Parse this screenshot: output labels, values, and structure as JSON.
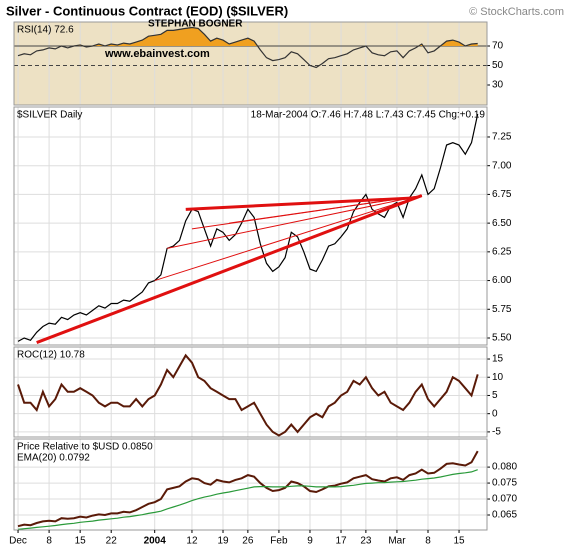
{
  "title": "Silver - Continuous Contract (EOD) ($SILVER)",
  "source": "© StockCharts.com",
  "chart_data": [
    {
      "type": "line",
      "label": "RSI(14) 72.6",
      "background": "#ede1c4",
      "annotations": [
        "STEPHAN BOGNER",
        "www.ebainvest.com"
      ],
      "overbought": 70,
      "overbought_color": "#f0a020",
      "ref_lines": [
        {
          "value": 70,
          "style": "solid"
        },
        {
          "value": 50,
          "style": "dashed"
        }
      ],
      "xlim": [
        -0.65,
        75.5
      ],
      "ylim": [
        9.5,
        94.6
      ],
      "yticks": [
        70,
        50,
        30
      ],
      "grid": true,
      "series": [
        {
          "color": "#333333",
          "values": [
            60,
            62,
            61,
            65,
            66,
            68,
            67,
            70,
            68,
            70,
            71,
            69,
            70,
            72,
            70,
            72,
            71,
            73,
            72,
            74,
            76,
            80,
            81,
            82,
            86,
            86,
            87,
            88,
            89,
            88,
            82,
            75,
            78,
            76,
            72,
            74,
            76,
            78,
            75,
            66,
            58,
            55,
            56,
            58,
            64,
            62,
            56,
            50,
            48,
            52,
            57,
            58,
            60,
            62,
            66,
            68,
            70,
            63,
            61,
            60,
            64,
            65,
            58,
            65,
            68,
            72,
            63,
            65,
            70,
            75,
            76,
            74,
            70,
            72,
            72.6
          ]
        }
      ]
    },
    {
      "type": "line",
      "label": "$SILVER Daily",
      "quote": "18-Mar-2004 O:7.46 H:7.48 L:7.43 C:7.45 Chg:+0.19",
      "background": "#ffffff",
      "xlim": [
        -0.65,
        75.5
      ],
      "ylim": [
        5.439,
        7.511
      ],
      "grid": true,
      "yticks": [
        {
          "value": 5.5,
          "label": "5.50"
        },
        5.75,
        {
          "value": 6,
          "label": "6.00"
        },
        6.25,
        {
          "value": 6.5,
          "label": "6.50"
        },
        6.75,
        {
          "value": 7,
          "label": "7.00"
        },
        7.25
      ],
      "trendline_color": "#e01010",
      "trendlines": [
        {
          "x": [
            3,
            65
          ],
          "y": [
            5.46,
            6.74
          ],
          "width": 3
        },
        {
          "x": [
            27,
            64
          ],
          "y": [
            6.62,
            6.72
          ],
          "width": 3
        },
        {
          "x": [
            22,
            65
          ],
          "y": [
            6.0,
            6.74
          ],
          "width": 1
        },
        {
          "x": [
            24,
            65
          ],
          "y": [
            6.28,
            6.74
          ],
          "width": 1
        },
        {
          "x": [
            28,
            65
          ],
          "y": [
            6.45,
            6.74
          ],
          "width": 1
        },
        {
          "x": [
            34,
            65
          ],
          "y": [
            6.5,
            6.74
          ],
          "width": 1
        }
      ],
      "series": [
        {
          "color": "#000000",
          "values": [
            5.47,
            5.5,
            5.48,
            5.55,
            5.6,
            5.63,
            5.62,
            5.68,
            5.66,
            5.7,
            5.72,
            5.7,
            5.74,
            5.78,
            5.76,
            5.8,
            5.8,
            5.83,
            5.82,
            5.86,
            5.9,
            5.98,
            6.0,
            6.05,
            6.28,
            6.3,
            6.35,
            6.52,
            6.62,
            6.6,
            6.45,
            6.3,
            6.45,
            6.42,
            6.35,
            6.4,
            6.5,
            6.62,
            6.55,
            6.32,
            6.15,
            6.08,
            6.12,
            6.2,
            6.42,
            6.38,
            6.25,
            6.1,
            6.08,
            6.18,
            6.3,
            6.32,
            6.38,
            6.45,
            6.6,
            6.68,
            6.75,
            6.62,
            6.58,
            6.55,
            6.65,
            6.68,
            6.55,
            6.72,
            6.8,
            6.92,
            6.75,
            6.8,
            6.98,
            7.18,
            7.2,
            7.18,
            7.1,
            7.2,
            7.45
          ]
        }
      ]
    },
    {
      "type": "line",
      "label": "ROC(12) 10.78",
      "background": "#ffffff",
      "xlim": [
        -0.65,
        75.5
      ],
      "ylim": [
        -6.4,
        18.3
      ],
      "yticks": [
        15,
        10,
        5,
        0,
        -5
      ],
      "grid": true,
      "series": [
        {
          "color": "#5a1a08",
          "values": [
            8,
            3,
            3,
            1,
            6,
            2,
            4,
            8,
            6,
            6,
            7,
            6,
            5,
            3,
            2,
            3,
            3,
            2,
            2,
            4,
            2,
            4,
            5,
            8,
            12,
            10,
            13,
            16,
            14,
            10,
            9,
            7,
            6,
            5,
            4,
            4,
            1,
            2,
            3,
            0,
            -3,
            -5,
            -6,
            -5,
            -3,
            -5,
            -3,
            -1,
            0,
            -1,
            2,
            3,
            5,
            6,
            9,
            8,
            10,
            7,
            5,
            6,
            3,
            2,
            1,
            3,
            6,
            8,
            4,
            2,
            4,
            6,
            10,
            9,
            7,
            5,
            10.78
          ]
        }
      ]
    },
    {
      "type": "line",
      "background": "#ffffff",
      "xlim": [
        -0.65,
        75.5
      ],
      "ylim": [
        0.0603,
        0.0888
      ],
      "grid": true,
      "yticks": [
        {
          "value": 0.08,
          "label": "0.080"
        },
        0.075,
        {
          "value": 0.07,
          "label": "0.070"
        },
        0.065
      ],
      "xticks": [
        {
          "value": 0,
          "label": "Dec"
        },
        {
          "value": 5,
          "label": "8"
        },
        {
          "value": 10,
          "label": "15"
        },
        {
          "value": 15,
          "label": "22"
        },
        {
          "value": 22,
          "label": "2004"
        },
        {
          "value": 28,
          "label": "12"
        },
        {
          "value": 33,
          "label": "19"
        },
        {
          "value": 37,
          "label": "26"
        },
        {
          "value": 42,
          "label": "Feb"
        },
        {
          "value": 47,
          "label": "9"
        },
        {
          "value": 52,
          "label": "17"
        },
        {
          "value": 56,
          "label": "23"
        },
        {
          "value": 61,
          "label": "Mar"
        },
        {
          "value": 66,
          "label": "8"
        },
        {
          "value": 71,
          "label": "15"
        }
      ],
      "series": [
        {
          "name": "Price Relative to $USD 0.0850",
          "color": "#5a1a08",
          "values": [
            0.0615,
            0.062,
            0.0618,
            0.0625,
            0.063,
            0.0632,
            0.063,
            0.064,
            0.0638,
            0.064,
            0.0645,
            0.0642,
            0.0648,
            0.0652,
            0.065,
            0.0655,
            0.0655,
            0.066,
            0.0658,
            0.0665,
            0.0675,
            0.0685,
            0.069,
            0.07,
            0.073,
            0.0735,
            0.074,
            0.0755,
            0.0765,
            0.0762,
            0.075,
            0.0745,
            0.076,
            0.0755,
            0.0752,
            0.076,
            0.0765,
            0.0775,
            0.077,
            0.075,
            0.0735,
            0.0725,
            0.0728,
            0.0735,
            0.0755,
            0.075,
            0.074,
            0.0725,
            0.0722,
            0.073,
            0.074,
            0.0742,
            0.0748,
            0.0752,
            0.0765,
            0.077,
            0.0775,
            0.0762,
            0.0758,
            0.0755,
            0.0765,
            0.0768,
            0.076,
            0.0775,
            0.078,
            0.0792,
            0.078,
            0.0782,
            0.0795,
            0.081,
            0.0812,
            0.0808,
            0.0805,
            0.0815,
            0.085
          ]
        },
        {
          "name": "EMA(20) 0.0792",
          "color": "#2a9a3a",
          "values": [
            0.0605,
            0.0607,
            0.0609,
            0.0611,
            0.0613,
            0.0615,
            0.0617,
            0.062,
            0.0622,
            0.0624,
            0.0627,
            0.0629,
            0.0631,
            0.0634,
            0.0636,
            0.0638,
            0.064,
            0.0643,
            0.0645,
            0.0648,
            0.0651,
            0.0655,
            0.0658,
            0.0662,
            0.0669,
            0.0675,
            0.0681,
            0.0688,
            0.0695,
            0.0701,
            0.0706,
            0.071,
            0.0715,
            0.0719,
            0.0722,
            0.0726,
            0.073,
            0.0734,
            0.0738,
            0.0739,
            0.0739,
            0.0738,
            0.0738,
            0.0738,
            0.074,
            0.0741,
            0.0741,
            0.074,
            0.0738,
            0.0738,
            0.0738,
            0.0738,
            0.0739,
            0.0741,
            0.0743,
            0.0746,
            0.0749,
            0.075,
            0.0751,
            0.0751,
            0.0753,
            0.0754,
            0.0755,
            0.0757,
            0.0759,
            0.0762,
            0.0764,
            0.0766,
            0.0769,
            0.0773,
            0.0777,
            0.078,
            0.0782,
            0.0785,
            0.0792
          ]
        }
      ]
    }
  ]
}
